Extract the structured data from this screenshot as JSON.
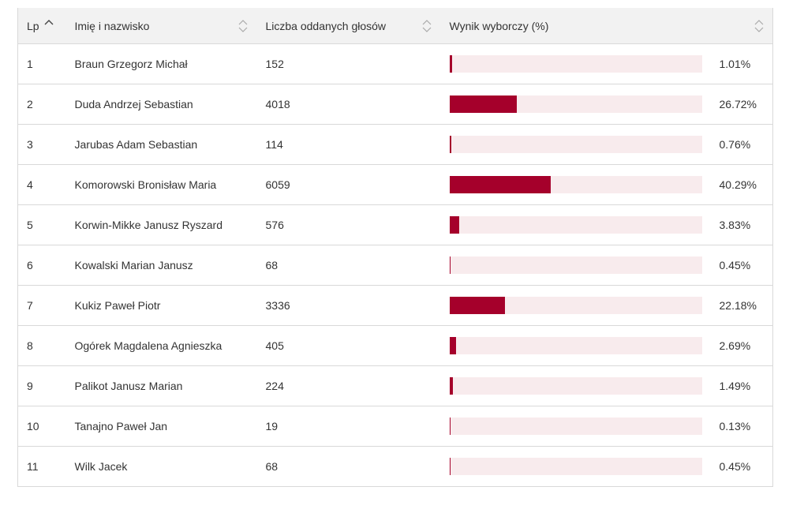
{
  "headers": {
    "lp": "Lp",
    "name": "Imię i nazwisko",
    "votes": "Liczba oddanych głosów",
    "result": "Wynik wyborczy (%)"
  },
  "colors": {
    "bar": "#a5002b",
    "track": "#f8ebed",
    "header_bg": "#f2f2f2"
  },
  "icons": {
    "lp_sort": "sort-ascending-icon",
    "other_sort": "sort-both-icon"
  },
  "rows": [
    {
      "lp": "1",
      "name": "Braun Grzegorz Michał",
      "votes": "152",
      "pct": "1.01%",
      "pct_value": 1.01
    },
    {
      "lp": "2",
      "name": "Duda Andrzej Sebastian",
      "votes": "4018",
      "pct": "26.72%",
      "pct_value": 26.72
    },
    {
      "lp": "3",
      "name": "Jarubas Adam Sebastian",
      "votes": "114",
      "pct": "0.76%",
      "pct_value": 0.76
    },
    {
      "lp": "4",
      "name": "Komorowski Bronisław Maria",
      "votes": "6059",
      "pct": "40.29%",
      "pct_value": 40.29
    },
    {
      "lp": "5",
      "name": "Korwin-Mikke Janusz Ryszard",
      "votes": "576",
      "pct": "3.83%",
      "pct_value": 3.83
    },
    {
      "lp": "6",
      "name": "Kowalski Marian Janusz",
      "votes": "68",
      "pct": "0.45%",
      "pct_value": 0.45
    },
    {
      "lp": "7",
      "name": "Kukiz Paweł Piotr",
      "votes": "3336",
      "pct": "22.18%",
      "pct_value": 22.18
    },
    {
      "lp": "8",
      "name": "Ogórek Magdalena Agnieszka",
      "votes": "405",
      "pct": "2.69%",
      "pct_value": 2.69
    },
    {
      "lp": "9",
      "name": "Palikot Janusz Marian",
      "votes": "224",
      "pct": "1.49%",
      "pct_value": 1.49
    },
    {
      "lp": "10",
      "name": "Tanajno Paweł Jan",
      "votes": "19",
      "pct": "0.13%",
      "pct_value": 0.13
    },
    {
      "lp": "11",
      "name": "Wilk Jacek",
      "votes": "68",
      "pct": "0.45%",
      "pct_value": 0.45
    }
  ]
}
